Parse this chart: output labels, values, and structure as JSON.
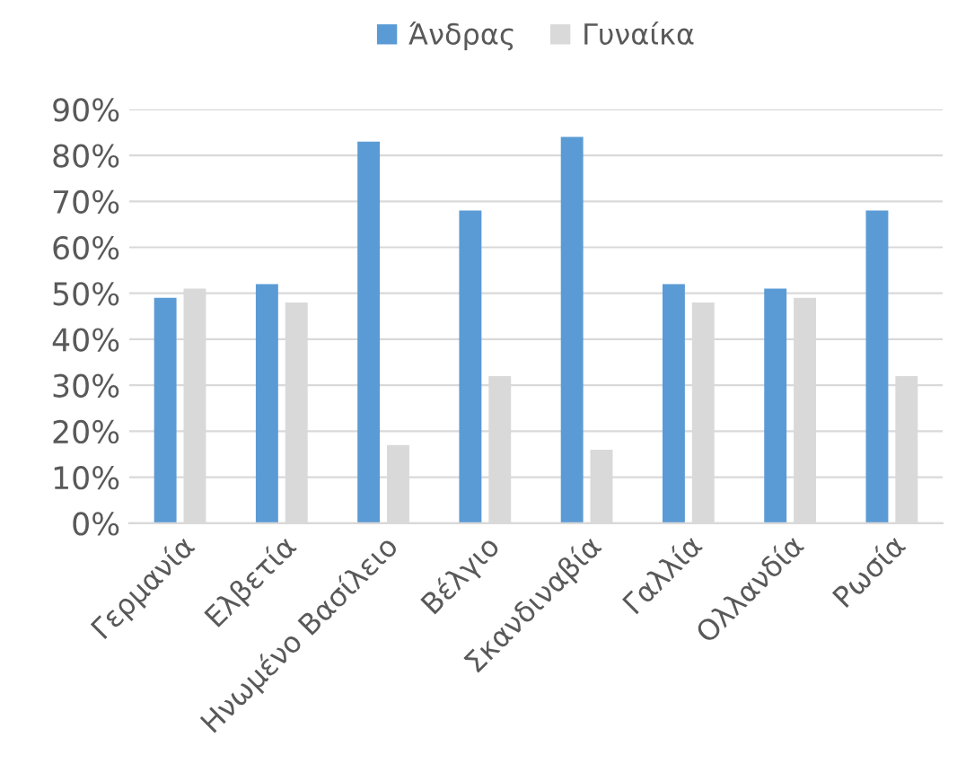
{
  "chart_data": {
    "type": "bar",
    "categories": [
      "Γερμανία",
      "Ελβετία",
      "Ηνωμένο Βασίλειο",
      "Βέλγιο",
      "Σκανδιναβία",
      "Γαλλία",
      "Ολλανδία",
      "Ρωσία"
    ],
    "series": [
      {
        "name": "Άνδρας",
        "color": "#5b9bd5",
        "values": [
          49,
          52,
          83,
          68,
          84,
          52,
          51,
          68
        ]
      },
      {
        "name": "Γυναίκα",
        "color": "#d9d9d9",
        "values": [
          51,
          48,
          17,
          32,
          16,
          48,
          49,
          32
        ]
      }
    ],
    "ylim": [
      0,
      90
    ],
    "yticks": [
      {
        "value": 0,
        "label": "0%"
      },
      {
        "value": 10,
        "label": "10%"
      },
      {
        "value": 20,
        "label": "20%"
      },
      {
        "value": 30,
        "label": "30%"
      },
      {
        "value": 40,
        "label": "40%"
      },
      {
        "value": 50,
        "label": "50%"
      },
      {
        "value": 60,
        "label": "60%"
      },
      {
        "value": 70,
        "label": "70%"
      },
      {
        "value": 80,
        "label": "80%"
      },
      {
        "value": 90,
        "label": "90%"
      }
    ],
    "grid": "y",
    "legend": "top"
  }
}
